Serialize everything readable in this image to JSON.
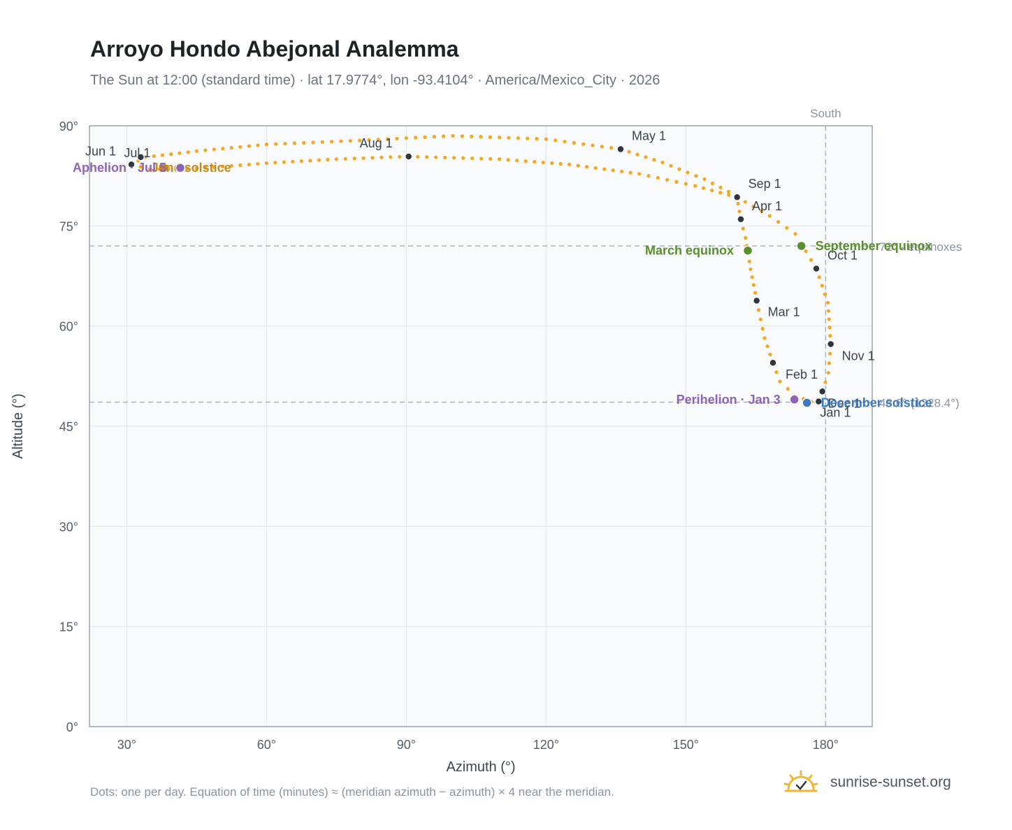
{
  "title": "Arroyo Hondo Abejonal Analemma",
  "subtitle": "The Sun at 12:00 (standard time) · lat 17.9774°, lon -93.4104° · America/Mexico_City · 2026",
  "footnote": "Dots: one per day. Equation of time (minutes) ≈ (meridian azimuth − azimuth) × 4 near the meridian.",
  "brand": "sunrise-sunset.org",
  "colors": {
    "path": "#f5a623",
    "month_dot": "#2f3640",
    "equinox": "#5a8f2e",
    "december_solstice": "#3a78c2",
    "june_solstice": "#c8891b",
    "apsis": "#8e63b8",
    "grid": "#e3e8ee",
    "plot_bg": "#f8fafc",
    "axis": "#9aa3b0",
    "reference": "#aab3be",
    "logo": "#f2b632"
  },
  "chart_data": {
    "type": "scatter",
    "xlabel": "Azimuth (°)",
    "ylabel": "Altitude (°)",
    "xlim": [
      22,
      190
    ],
    "ylim": [
      0,
      90
    ],
    "x_ticks": [
      30,
      60,
      90,
      120,
      150,
      180
    ],
    "x_tick_labels": [
      "30°",
      "60°",
      "90°",
      "120°",
      "150°",
      "180°"
    ],
    "y_ticks": [
      0,
      15,
      30,
      45,
      60,
      75,
      90
    ],
    "y_tick_labels": [
      "0°",
      "15°",
      "30°",
      "45°",
      "60°",
      "75°",
      "90°"
    ],
    "grid": true,
    "south_line": {
      "x": 180,
      "label": "South"
    },
    "reference_lines": [
      {
        "y": 72.0,
        "label": "72° · equinoxes"
      },
      {
        "y": 48.6,
        "label": "48.6° (1228.4°)"
      }
    ],
    "daily_path": [
      [
        176.9,
        48.7
      ],
      [
        173.6,
        49.5
      ],
      [
        170.2,
        51.7
      ],
      [
        168.7,
        54.5
      ],
      [
        166.9,
        58.2
      ],
      [
        165.2,
        63.8
      ],
      [
        163.9,
        68.5
      ],
      [
        162.8,
        73.2
      ],
      [
        161.8,
        76.0
      ],
      [
        160.9,
        79.5
      ],
      [
        154.0,
        82.0
      ],
      [
        145.0,
        84.5
      ],
      [
        136.0,
        86.5
      ],
      [
        120.0,
        88.0
      ],
      [
        100.0,
        88.5
      ],
      [
        80.0,
        87.8
      ],
      [
        60.0,
        87.2
      ],
      [
        45.0,
        86.2
      ],
      [
        34.0,
        85.3
      ],
      [
        31.0,
        84.2
      ],
      [
        35.0,
        83.5
      ],
      [
        45.0,
        83.6
      ],
      [
        60.0,
        84.4
      ],
      [
        75.0,
        85.0
      ],
      [
        90.5,
        85.4
      ],
      [
        110.0,
        85.0
      ],
      [
        125.0,
        84.2
      ],
      [
        140.0,
        82.8
      ],
      [
        152.0,
        81.0
      ],
      [
        161.0,
        79.3
      ],
      [
        168.0,
        76.5
      ],
      [
        173.5,
        73.8
      ],
      [
        178.0,
        68.6
      ],
      [
        180.5,
        63.5
      ],
      [
        181.1,
        57.3
      ],
      [
        180.6,
        53.0
      ],
      [
        179.3,
        50.2
      ],
      [
        178.2,
        49.0
      ],
      [
        176.9,
        48.7
      ]
    ],
    "month_markers": [
      {
        "label": "Jan 1",
        "x": 178.5,
        "y": 48.7
      },
      {
        "label": "Feb 1",
        "x": 168.7,
        "y": 54.5
      },
      {
        "label": "Mar 1",
        "x": 165.2,
        "y": 63.8
      },
      {
        "label": "Apr 1",
        "x": 161.8,
        "y": 76.0
      },
      {
        "label": "May 1",
        "x": 136.0,
        "y": 86.5
      },
      {
        "label": "Jun 1",
        "x": 31.0,
        "y": 84.2
      },
      {
        "label": "Jul 1",
        "x": 33.0,
        "y": 85.3
      },
      {
        "label": "Aug 1",
        "x": 90.5,
        "y": 85.4
      },
      {
        "label": "Sep 1",
        "x": 161.0,
        "y": 79.3
      },
      {
        "label": "Oct 1",
        "x": 178.0,
        "y": 68.6
      },
      {
        "label": "Nov 1",
        "x": 181.1,
        "y": 57.3
      },
      {
        "label": "Dec 1",
        "x": 179.3,
        "y": 50.2
      }
    ],
    "events": [
      {
        "label": "March equinox",
        "x": 163.3,
        "y": 71.3,
        "kind": "equinox"
      },
      {
        "label": "September equinox",
        "x": 174.8,
        "y": 72.0,
        "kind": "equinox"
      },
      {
        "label": "December solstice",
        "x": 176.0,
        "y": 48.5,
        "kind": "december_solstice"
      },
      {
        "label": "June solstice",
        "x": 38.0,
        "y": 83.7,
        "kind": "june_solstice"
      },
      {
        "label": "Perihelion · Jan 3",
        "x": 173.3,
        "y": 49.0,
        "kind": "apsis"
      },
      {
        "label": "Aphelion · Jul 5",
        "x": 41.5,
        "y": 83.7,
        "kind": "apsis"
      }
    ]
  }
}
